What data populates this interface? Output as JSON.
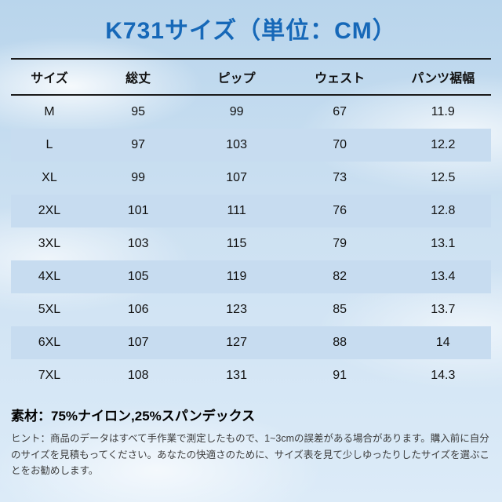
{
  "title": "K731サイズ（単位：CM）",
  "colors": {
    "title_blue": "#1668b8",
    "row_highlight": "#c7dcf0",
    "sky_top": "#b9d5ec",
    "sky_bottom": "#dcebf8"
  },
  "chart_data": {
    "type": "table",
    "title": "K731サイズ（単位：CM）",
    "unit": "CM",
    "columns": [
      "サイズ",
      "総丈",
      "ピップ",
      "ウェスト",
      "パンツ裾幅"
    ],
    "rows": [
      [
        "M",
        "95",
        "99",
        "67",
        "11.9"
      ],
      [
        "L",
        "97",
        "103",
        "70",
        "12.2"
      ],
      [
        "XL",
        "99",
        "107",
        "73",
        "12.5"
      ],
      [
        "2XL",
        "101",
        "111",
        "76",
        "12.8"
      ],
      [
        "3XL",
        "103",
        "115",
        "79",
        "13.1"
      ],
      [
        "4XL",
        "105",
        "119",
        "82",
        "13.4"
      ],
      [
        "5XL",
        "106",
        "123",
        "85",
        "13.7"
      ],
      [
        "6XL",
        "107",
        "127",
        "88",
        "14"
      ],
      [
        "7XL",
        "108",
        "131",
        "91",
        "14.3"
      ]
    ],
    "highlighted_rows": [
      "L",
      "2XL",
      "4XL",
      "6XL"
    ]
  },
  "material": "素材：75%ナイロン,25%スパンデックス",
  "hint": "ヒント：商品のデータはすべて手作業で測定したもので、1~3cmの誤差がある場合があります。購入前に自分のサイズを見積もってください。あなたの快適さのために、サイズ表を見て少しゆったりしたサイズを選ぶことをお勧めします。"
}
